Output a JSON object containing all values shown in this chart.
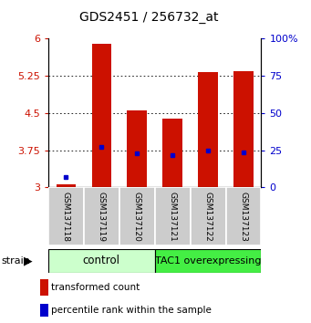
{
  "title": "GDS2451 / 256732_at",
  "samples": [
    "GSM137118",
    "GSM137119",
    "GSM137120",
    "GSM137121",
    "GSM137122",
    "GSM137123"
  ],
  "transformed_counts": [
    3.07,
    5.9,
    4.56,
    4.38,
    5.32,
    5.35
  ],
  "percentile_ranks": [
    3.2,
    3.82,
    3.68,
    3.65,
    3.75,
    3.7
  ],
  "ylim": [
    3.0,
    6.0
  ],
  "yticks_left": [
    3.0,
    3.75,
    4.5,
    5.25,
    6.0
  ],
  "yticks_right": [
    0,
    25,
    50,
    75,
    100
  ],
  "bar_color": "#cc1100",
  "dot_color": "#0000cc",
  "control_color": "#ccffcc",
  "tac1_color": "#44ee44",
  "sample_box_color": "#cccccc",
  "bar_width": 0.55,
  "legend_bar": "transformed count",
  "legend_dot": "percentile rank within the sample"
}
